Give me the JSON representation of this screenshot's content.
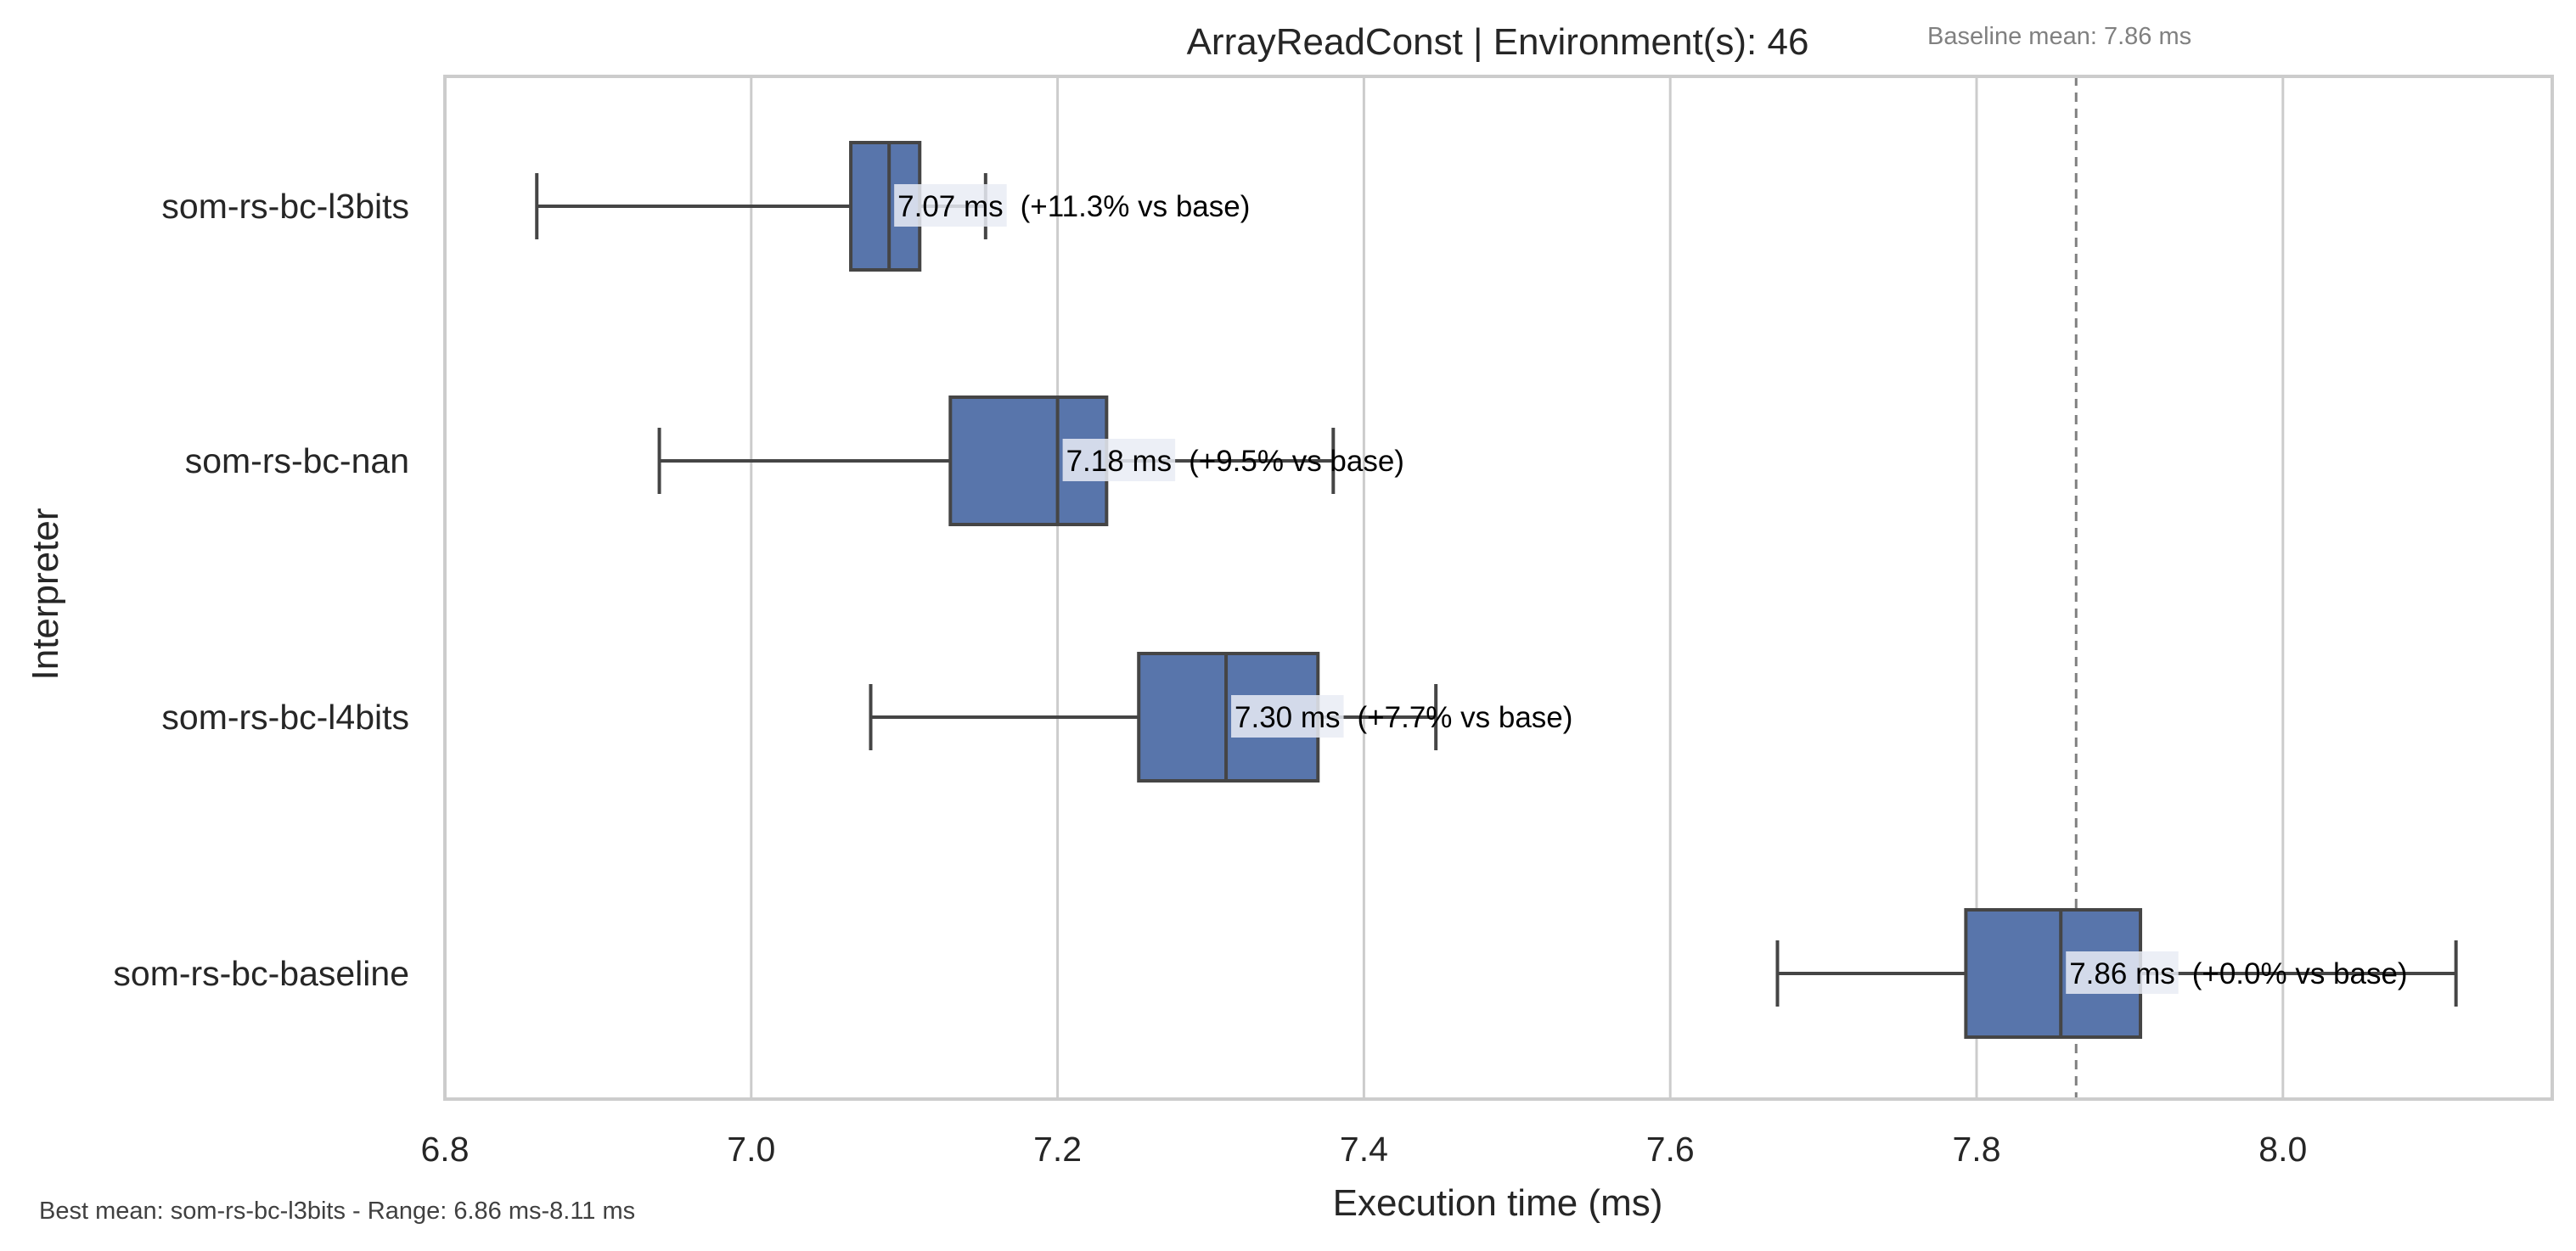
{
  "chart_data": {
    "type": "box",
    "title": "ArrayReadConst | Environment(s): 46",
    "xlabel": "Execution time (ms)",
    "ylabel": "Interpreter",
    "xlim": [
      6.8,
      8.17
    ],
    "xticks": [
      "6.8",
      "7.0",
      "7.2",
      "7.4",
      "7.6",
      "7.8",
      "8.0"
    ],
    "grid": "vertical",
    "baseline": {
      "value": 7.865,
      "label": "Baseline mean: 7.86 ms"
    },
    "footnote": "Best mean: som-rs-bc-l3bits - Range: 6.86 ms-8.11 ms",
    "box_color": "#5875ab",
    "series": [
      {
        "name": "som-rs-bc-l3bits",
        "whisker_low": 6.86,
        "q1": 7.065,
        "median": 7.09,
        "q3": 7.11,
        "whisker_high": 7.153,
        "mean_label": "7.07 ms",
        "delta_label": "(+11.3% vs base)"
      },
      {
        "name": "som-rs-bc-nan",
        "whisker_low": 6.94,
        "q1": 7.13,
        "median": 7.2,
        "q3": 7.232,
        "whisker_high": 7.38,
        "mean_label": "7.18 ms",
        "delta_label": "(+9.5% vs base)"
      },
      {
        "name": "som-rs-bc-l4bits",
        "whisker_low": 7.078,
        "q1": 7.253,
        "median": 7.31,
        "q3": 7.37,
        "whisker_high": 7.447,
        "mean_label": "7.30 ms",
        "delta_label": "(+7.7% vs base)"
      },
      {
        "name": "som-rs-bc-baseline",
        "whisker_low": 7.67,
        "q1": 7.793,
        "median": 7.855,
        "q3": 7.907,
        "whisker_high": 8.113,
        "mean_label": "7.86 ms",
        "delta_label": "(+0.0% vs base)"
      }
    ]
  }
}
